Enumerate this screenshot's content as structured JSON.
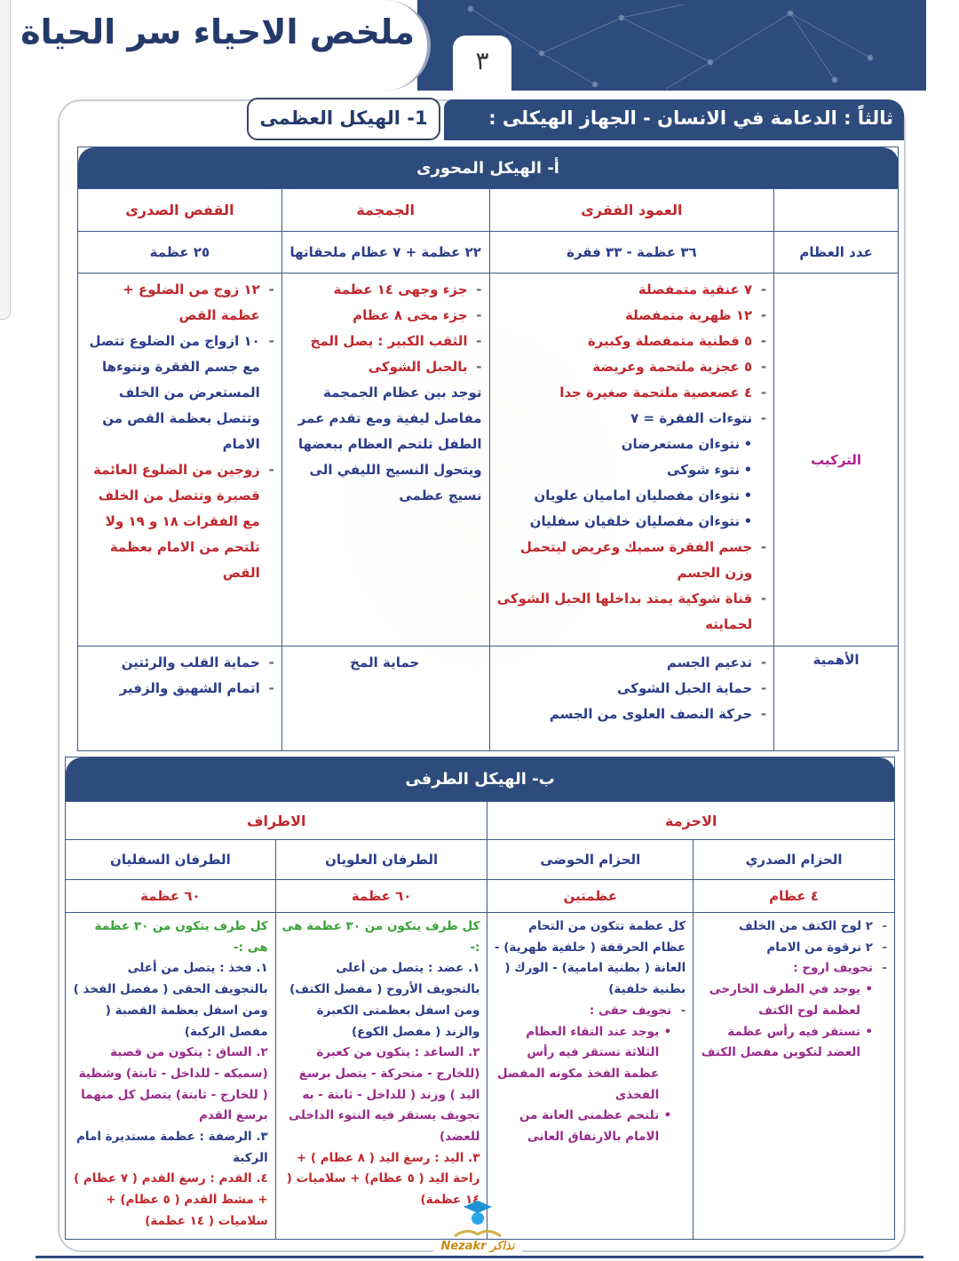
{
  "header": {
    "title": "ملخص الاحياء سر الحياة",
    "page_number": "٣"
  },
  "section": {
    "heading": "ثالثاً : الدعامة في الانسان - الجهاز الهيكلى :",
    "subheading": "1- الهيكل العظمى"
  },
  "axial": {
    "title": "أ- الهيكل المحورى",
    "columns": [
      "العمود الفقرى",
      "الجمجمة",
      "القفص الصدرى"
    ],
    "rows": {
      "count_label": "عدد العظام",
      "structure_label": "التركيب",
      "importance_label": "الأهمية"
    },
    "counts": [
      "٣٦ عظمة  -  ٣٣ فقرة",
      "٢٢ عظمة + ٧ عظام ملحقاتها",
      "٢٥ عظمة"
    ],
    "structure": [
      [
        {
          "t": "٧ عنقية متمفصلة",
          "c": "r",
          "k": "dash"
        },
        {
          "t": "١٢ ظهرية متمفصلة",
          "c": "r",
          "k": "dash"
        },
        {
          "t": "٥ قطنية متمفصلة وكبيرة",
          "c": "r",
          "k": "dash"
        },
        {
          "t": "٥ عجزية ملتحمة وعريضة",
          "c": "r",
          "k": "dash"
        },
        {
          "t": "٤ عصعصية ملتحمة صغيرة جدا",
          "c": "r",
          "k": "dash"
        },
        {
          "t": "نتوءات الفقرة = ٧",
          "c": "b",
          "k": "dash"
        },
        {
          "t": "نتوءان مستعرضان",
          "c": "b",
          "k": "bul"
        },
        {
          "t": "نتوء شوكى",
          "c": "b",
          "k": "bul"
        },
        {
          "t": "نتوءان مفصليان اماميان علويان",
          "c": "b",
          "k": "bul"
        },
        {
          "t": "نتوءان مفصليان خلفيان سفليان",
          "c": "b",
          "k": "bul"
        },
        {
          "t": "جسم الفقرة سميك وعريض ليتحمل وزن الجسم",
          "c": "r",
          "k": "dash"
        },
        {
          "t": "قناة شوكية يمتد بداخلها الحبل الشوكى لحمايته",
          "c": "r",
          "k": "dash"
        }
      ],
      [
        {
          "t": "جزء وجهى    ١٤ عظمة",
          "c": "r",
          "k": "dash"
        },
        {
          "t": "جزء مخى    ٨ عظام",
          "c": "r",
          "k": "dash"
        },
        {
          "t": "الثقب الكبير : يصل المخ",
          "c": "r",
          "k": "dash"
        },
        {
          "t": "بالحبل الشوكى",
          "c": "r",
          "k": "dash"
        },
        {
          "t": " ",
          "c": "b",
          "k": "plain"
        },
        {
          "t": "توجد بين عظام الجمجمة مفاصل ليفية ومع تقدم عمر الطفل تلتحم العظام ببعضها ويتحول النسيج الليفي الى نسيج عظمى",
          "c": "b",
          "k": "plain"
        }
      ],
      [
        {
          "t": "١٢ زوج من الضلوع + عظمة القص",
          "c": "r",
          "k": "dash"
        },
        {
          "t": "١٠ ازواج من الضلوع تتصل مع جسم الفقرة ونتوءها المستعرض من الخلف وتتصل بعظمة القص من الامام",
          "c": "b",
          "k": "dash"
        },
        {
          "t": "زوجين من الضلوع العائمة قصيرة وتتصل من الخلف مع الفقرات ١٨ و ١٩ ولا تلتحم من الامام بعظمة القص",
          "c": "r",
          "k": "dash"
        }
      ]
    ],
    "importance": [
      [
        {
          "t": "تدعيم الجسم",
          "c": "b",
          "k": "dash"
        },
        {
          "t": "حماية الحبل الشوكى",
          "c": "b",
          "k": "dash"
        },
        {
          "t": "حركة النصف العلوى من الجسم",
          "c": "b",
          "k": "dash"
        }
      ],
      [
        {
          "t": "حماية المخ",
          "c": "b",
          "k": "plain"
        }
      ],
      [
        {
          "t": "حماية القلب والرئتين",
          "c": "b",
          "k": "dash"
        },
        {
          "t": "اتمام الشهيق والزفير",
          "c": "b",
          "k": "dash"
        }
      ]
    ]
  },
  "appendicular": {
    "title": "ب- الهيكل الطرفى",
    "groups": [
      "الاحزمة",
      "الاطراف"
    ],
    "columns": [
      "الحزام الصدري",
      "الحزام الحوضى",
      "الطرفان العلويان",
      "الطرفان السفليان"
    ],
    "counts": [
      "٤ عظام",
      "عظمتين",
      "٦٠ عظمة",
      "٦٠ عظمة"
    ],
    "content": [
      [
        {
          "t": "٢ لوح الكتف من الخلف",
          "c": "b",
          "k": "dash"
        },
        {
          "t": "٢ ترقوة من الامام",
          "c": "b",
          "k": "dash"
        },
        {
          "t": "تجويف اروح :",
          "c": "m",
          "k": "dash"
        },
        {
          "t": "يوجد في الطرف الخارجى لعظمة لوح الكتف",
          "c": "m",
          "k": "bul"
        },
        {
          "t": "تستقر فيه رأس عظمة العضد لتكوين مفصل الكتف",
          "c": "m",
          "k": "bul"
        }
      ],
      [
        {
          "t": "كل عظمة تتكون من التحام عظام الحرقفة ( خلفية ظهرية) - العانة ( بطنية امامية) - الورك ( بطنية خلفية)",
          "c": "b",
          "k": "plain"
        },
        {
          "t": "تجويف حقى :",
          "c": "m",
          "k": "dash"
        },
        {
          "t": "يوجد عند التقاء العظام الثلاثة تستقر فيه رأس عظمة الفخذ مكونه المفصل الفخذى",
          "c": "m",
          "k": "bul"
        },
        {
          "t": "تلتحم عظمتى العانة من الامام بالارتفاق العانى",
          "c": "m",
          "k": "bul"
        }
      ],
      [
        {
          "t": "كل طرف يتكون من ٣٠ عظمة هى :-",
          "c": "g",
          "k": "plain"
        },
        {
          "t": "١. عضد : يتصل من أعلى بالتجويف الأروح ( مفصل الكتف) ومن اسفل بعظمتى الكعبرة والزند ( مفصل الكوع)",
          "c": "b",
          "k": "plain"
        },
        {
          "t": "٢. الساعد : يتكون من كعبرة (للخارج - متحركة - يتصل برسغ اليد ) وزند ( للداخل - ثابتة - به تجويف يستقر فيه النتوء الداخلى للعضد)",
          "c": "m",
          "k": "plain"
        },
        {
          "t": "٣. اليد : رسغ اليد ( ٨ عظام ) + راحة اليد ( ٥ عظام) + سلاميات ( ١٤ عظمة)",
          "c": "r",
          "k": "plain"
        }
      ],
      [
        {
          "t": "كل طرف يتكون من ٣٠ عظمة هى :-",
          "c": "g",
          "k": "plain"
        },
        {
          "t": "١. فخذ : يتصل من أعلى بالتجويف الحقى ( مفصل الفخذ ) ومن اسفل بعظمة القصبة ( مفصل الركبة)",
          "c": "b",
          "k": "plain"
        },
        {
          "t": "٢. الساق : يتكون من قصبة (سميكه - للداخل - ثابتة) وشظية ( للخارج - ثابتة) يتصل كل منهما برسغ القدم",
          "c": "m",
          "k": "plain"
        },
        {
          "t": "٣. الرضفة : عظمة مستديرة امام الركبة",
          "c": "b",
          "k": "plain"
        },
        {
          "t": "٤. القدم : رسغ القدم ( ٧ عظام ) + مشط القدم ( ٥ عظام) + سلاميات ( ١٤ عظمة)",
          "c": "r",
          "k": "plain"
        }
      ]
    ]
  },
  "logo": {
    "text": "Nezakr نذاكر"
  },
  "colors": {
    "navy": "#2d4b7c",
    "red": "#c0282d",
    "blue": "#2b3d8a",
    "magenta": "#9b2a8a",
    "green": "#3aa23a"
  }
}
